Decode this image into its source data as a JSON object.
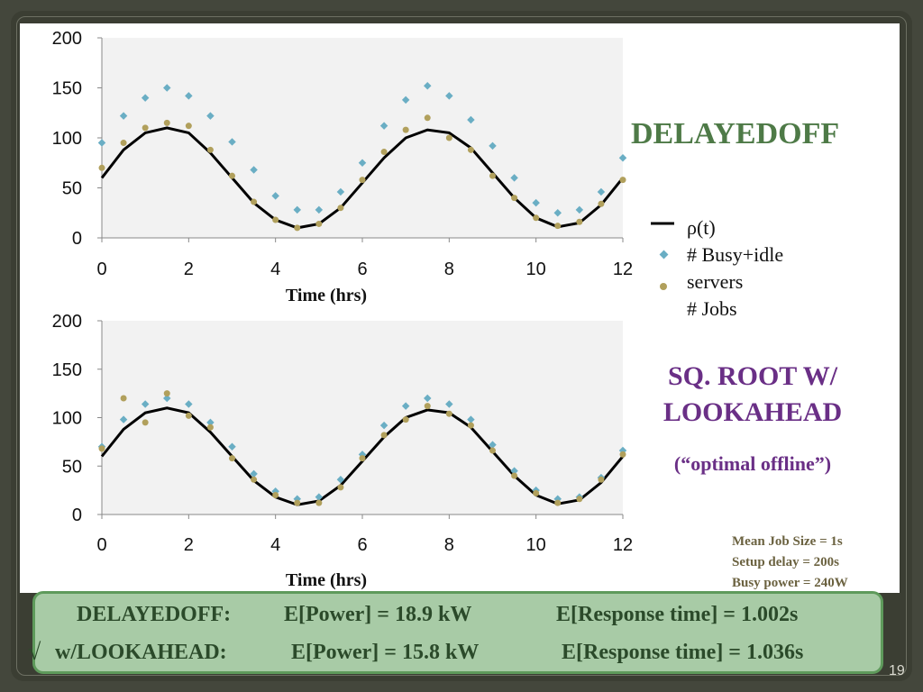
{
  "slide": {
    "title_delayedoff": "DELAYEDOFF",
    "title_sqroot_line1": "SQ. ROOT W/",
    "title_sqroot_line2": "LOOKAHEAD",
    "subtitle_optimal": "(“optimal offline”)",
    "legend": {
      "rho": "ρ(t)",
      "busy_idle": "# Busy+idle",
      "servers": "servers",
      "jobs": "# Jobs"
    },
    "params": [
      "Mean Job Size = 1s",
      "Setup delay = 200s",
      "Busy power = 240W"
    ],
    "results": {
      "delayedoff_label": "DELAYEDOFF:",
      "delayedoff_power": "E[Power] = 18.9 kW",
      "delayedoff_resp": "E[Response time] = 1.002s",
      "check": "√",
      "lookahead_label": "w/LOOKAHEAD:",
      "lookahead_power": "E[Power] = 15.8 kW",
      "lookahead_resp": "E[Response time] = 1.036s"
    },
    "page_number": "19"
  },
  "colors": {
    "rho": "#000000",
    "busy_idle": "#6aaec4",
    "jobs": "#b1a05c",
    "plot_bg": "#f2f2f2"
  },
  "chart_data": [
    {
      "type": "scatter",
      "title": "DELAYEDOFF",
      "xlabel": "Time (hrs)",
      "ylabel": "",
      "xlim": [
        0,
        12
      ],
      "ylim": [
        0,
        200
      ],
      "xticks": [
        0,
        2,
        4,
        6,
        8,
        10,
        12
      ],
      "yticks": [
        0,
        50,
        100,
        150,
        200
      ],
      "legend_position": "right",
      "series": [
        {
          "name": "ρ(t)",
          "kind": "line",
          "x": [
            0,
            0.5,
            1,
            1.5,
            2,
            2.5,
            3,
            3.5,
            4,
            4.5,
            5,
            5.5,
            6,
            6.5,
            7,
            7.5,
            8,
            8.5,
            9,
            9.5,
            10,
            10.5,
            11,
            11.5,
            12
          ],
          "values": [
            60,
            88,
            105,
            110,
            105,
            85,
            60,
            35,
            18,
            10,
            14,
            30,
            55,
            80,
            100,
            108,
            105,
            90,
            65,
            40,
            20,
            11,
            15,
            33,
            60
          ]
        },
        {
          "name": "# Busy+idle servers",
          "kind": "points",
          "x": [
            0,
            0.5,
            1,
            1.5,
            2,
            2.5,
            3,
            3.5,
            4,
            4.5,
            5,
            5.5,
            6,
            6.5,
            7,
            7.5,
            8,
            8.5,
            9,
            9.5,
            10,
            10.5,
            11,
            11.5,
            12
          ],
          "values": [
            95,
            122,
            140,
            150,
            142,
            122,
            96,
            68,
            42,
            28,
            28,
            46,
            75,
            112,
            138,
            152,
            142,
            118,
            92,
            60,
            35,
            25,
            28,
            46,
            80
          ]
        },
        {
          "name": "# Jobs",
          "kind": "points",
          "x": [
            0,
            0.5,
            1,
            1.5,
            2,
            2.5,
            3,
            3.5,
            4,
            4.5,
            5,
            5.5,
            6,
            6.5,
            7,
            7.5,
            8,
            8.5,
            9,
            9.5,
            10,
            10.5,
            11,
            11.5,
            12
          ],
          "values": [
            70,
            95,
            110,
            115,
            112,
            88,
            62,
            36,
            18,
            10,
            14,
            30,
            58,
            86,
            108,
            120,
            100,
            88,
            62,
            40,
            20,
            12,
            16,
            34,
            58
          ]
        }
      ]
    },
    {
      "type": "scatter",
      "title": "SQ. ROOT W/ LOOKAHEAD",
      "xlabel": "Time (hrs)",
      "ylabel": "",
      "xlim": [
        0,
        12
      ],
      "ylim": [
        0,
        200
      ],
      "xticks": [
        0,
        2,
        4,
        6,
        8,
        10,
        12
      ],
      "yticks": [
        0,
        50,
        100,
        150,
        200
      ],
      "series": [
        {
          "name": "ρ(t)",
          "kind": "line",
          "x": [
            0,
            0.5,
            1,
            1.5,
            2,
            2.5,
            3,
            3.5,
            4,
            4.5,
            5,
            5.5,
            6,
            6.5,
            7,
            7.5,
            8,
            8.5,
            9,
            9.5,
            10,
            10.5,
            11,
            11.5,
            12
          ],
          "values": [
            60,
            88,
            105,
            110,
            105,
            85,
            60,
            35,
            18,
            10,
            14,
            30,
            55,
            80,
            100,
            108,
            105,
            90,
            65,
            40,
            20,
            11,
            15,
            33,
            60
          ]
        },
        {
          "name": "# Busy+idle servers",
          "kind": "points",
          "x": [
            0,
            0.5,
            1,
            1.5,
            2,
            2.5,
            3,
            3.5,
            4,
            4.5,
            5,
            5.5,
            6,
            6.5,
            7,
            7.5,
            8,
            8.5,
            9,
            9.5,
            10,
            10.5,
            11,
            11.5,
            12
          ],
          "values": [
            70,
            98,
            114,
            120,
            114,
            95,
            70,
            42,
            24,
            16,
            18,
            36,
            62,
            92,
            112,
            120,
            114,
            98,
            72,
            45,
            25,
            16,
            18,
            38,
            66
          ]
        },
        {
          "name": "# Jobs",
          "kind": "points",
          "x": [
            0,
            0.5,
            1,
            1.5,
            2,
            2.5,
            3,
            3.5,
            4,
            4.5,
            5,
            5.5,
            6,
            6.5,
            7,
            7.5,
            8,
            8.5,
            9,
            9.5,
            10,
            10.5,
            11,
            11.5,
            12
          ],
          "values": [
            68,
            120,
            95,
            125,
            102,
            90,
            58,
            36,
            20,
            12,
            12,
            28,
            58,
            82,
            98,
            112,
            104,
            92,
            66,
            40,
            22,
            12,
            16,
            36,
            62
          ]
        }
      ]
    }
  ]
}
